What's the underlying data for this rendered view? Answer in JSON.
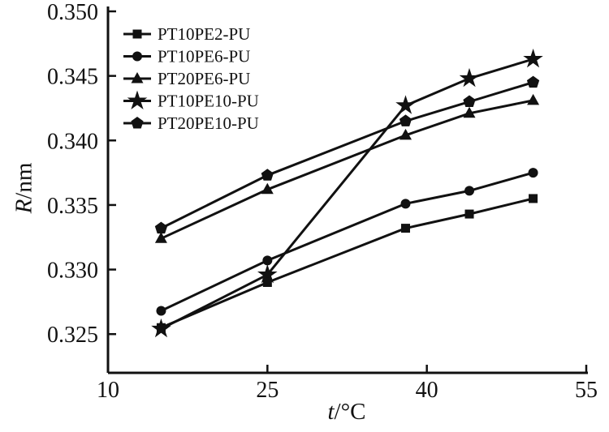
{
  "chart_data": {
    "type": "line",
    "title": "",
    "xlabel_italic": "t",
    "xlabel_rest": "/°C",
    "ylabel_italic": "R",
    "ylabel_rest": "/nm",
    "xlim": [
      10,
      55
    ],
    "ylim": [
      0.322,
      0.35
    ],
    "xticks": [
      10,
      25,
      40,
      55
    ],
    "yticks": [
      0.325,
      0.33,
      0.335,
      0.34,
      0.345,
      0.35
    ],
    "grid": false,
    "legend_position": "top-left",
    "line_color": "#111111",
    "x": [
      15,
      25,
      38,
      44,
      50
    ],
    "series": [
      {
        "name": "PT10PE2-PU",
        "marker": "square",
        "values": [
          0.3255,
          0.329,
          0.3332,
          0.3343,
          0.3355
        ]
      },
      {
        "name": "PT10PE6-PU",
        "marker": "circle",
        "values": [
          0.3268,
          0.3307,
          0.3351,
          0.3361,
          0.3375
        ]
      },
      {
        "name": "PT20PE6-PU",
        "marker": "triangle",
        "values": [
          0.3324,
          0.3362,
          0.3404,
          0.3421,
          0.3431
        ]
      },
      {
        "name": "PT10PE10-PU",
        "marker": "star",
        "values": [
          0.3254,
          0.3296,
          0.3427,
          0.3448,
          0.3463
        ]
      },
      {
        "name": "PT20PE10-PU",
        "marker": "pentagon",
        "values": [
          0.3332,
          0.3373,
          0.3415,
          0.343,
          0.3445
        ]
      }
    ]
  }
}
